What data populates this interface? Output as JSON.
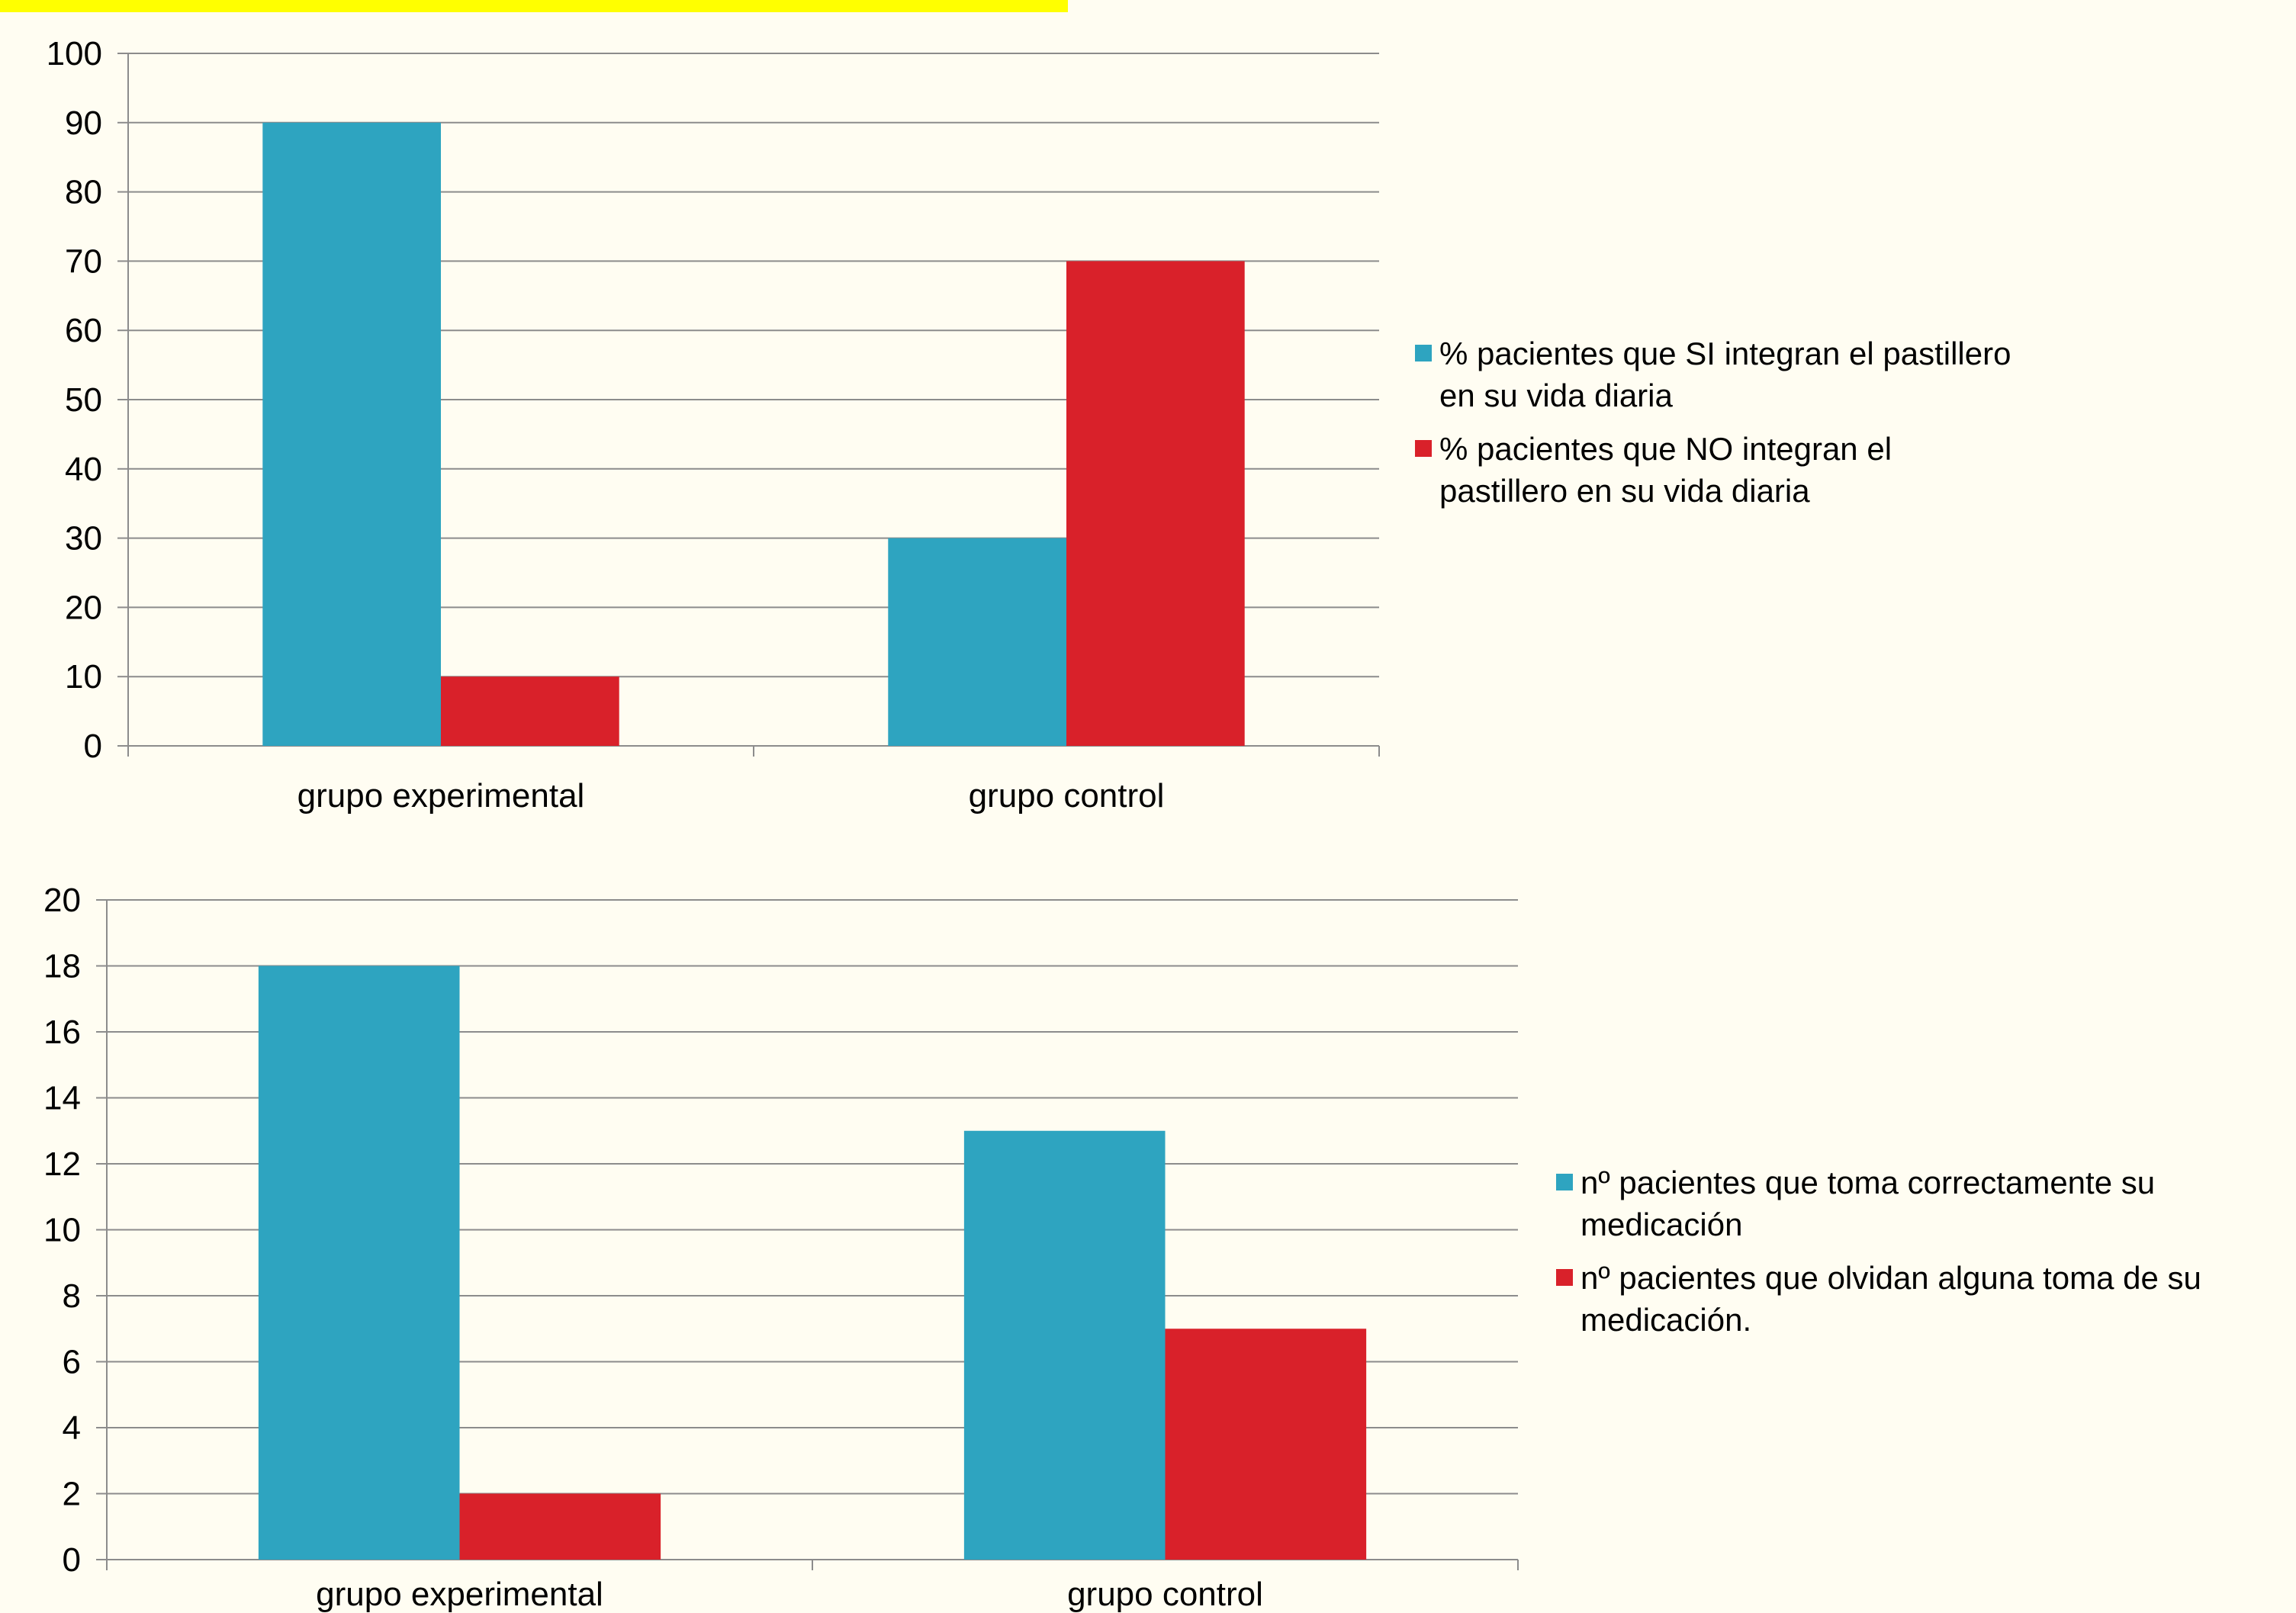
{
  "chart_data": [
    {
      "type": "bar",
      "categories": [
        "grupo experimental",
        "grupo control"
      ],
      "series": [
        {
          "name": "% pacientes que SI integran el pastillero en su vida diaria",
          "values": [
            90,
            30
          ],
          "color": "#2ea4c0"
        },
        {
          "name": "% pacientes que NO integran el pastillero en su vida diaria",
          "values": [
            10,
            70
          ],
          "color": "#d9212a"
        }
      ],
      "legend_lines": [
        [
          "% pacientes que SI integran el pastillero",
          "en su vida diaria"
        ],
        [
          "% pacientes que NO integran el",
          "pastillero en su vida diaria"
        ]
      ],
      "ylim": [
        0,
        100
      ],
      "yticks": [
        0,
        10,
        20,
        30,
        40,
        50,
        60,
        70,
        80,
        90,
        100
      ],
      "grid": true,
      "legend": "right"
    },
    {
      "type": "bar",
      "categories": [
        "grupo experimental",
        "grupo control"
      ],
      "series": [
        {
          "name": "nº pacientes que toma correctamente su medicación",
          "values": [
            18,
            13
          ],
          "color": "#2ea4c0"
        },
        {
          "name": "nº pacientes que olvidan alguna toma de su medicación.",
          "values": [
            2,
            7
          ],
          "color": "#d9212a"
        }
      ],
      "legend_lines": [
        [
          "nº pacientes que toma correctamente su",
          "medicación"
        ],
        [
          "nº pacientes que olvidan alguna toma de su",
          "medicación."
        ]
      ],
      "ylim": [
        0,
        20
      ],
      "yticks": [
        0,
        2,
        4,
        6,
        8,
        10,
        12,
        14,
        16,
        18,
        20
      ],
      "grid": true,
      "legend": "right"
    }
  ]
}
